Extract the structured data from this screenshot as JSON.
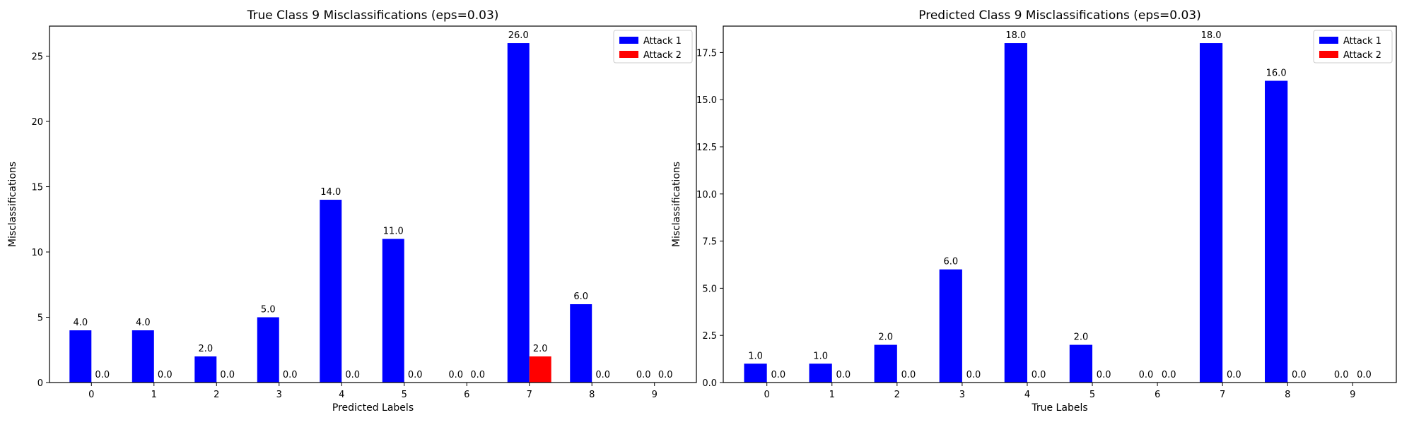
{
  "chart_data": [
    {
      "type": "bar",
      "title": "True Class 9 Misclassifications (eps=0.03)",
      "xlabel": "Predicted Labels",
      "ylabel": "Misclassifications",
      "categories": [
        "0",
        "1",
        "2",
        "3",
        "4",
        "5",
        "6",
        "7",
        "8",
        "9"
      ],
      "ylim": [
        0,
        27.3
      ],
      "yticks": [
        0,
        5,
        10,
        15,
        20,
        25
      ],
      "ytick_labels": [
        "0",
        "5",
        "10",
        "15",
        "20",
        "25"
      ],
      "legend_position": "top-right",
      "series": [
        {
          "name": "Attack 1",
          "color": "#0000ff",
          "values": [
            4,
            4,
            2,
            5,
            14,
            11,
            0,
            26,
            6,
            0
          ],
          "labels": [
            "4.0",
            "4.0",
            "2.0",
            "5.0",
            "14.0",
            "11.0",
            "0.0",
            "26.0",
            "6.0",
            "0.0"
          ]
        },
        {
          "name": "Attack 2",
          "color": "#ff0000",
          "values": [
            0,
            0,
            0,
            0,
            0,
            0,
            0,
            2,
            0,
            0
          ],
          "labels": [
            "0.0",
            "0.0",
            "0.0",
            "0.0",
            "0.0",
            "0.0",
            "0.0",
            "2.0",
            "0.0",
            "0.0"
          ]
        }
      ]
    },
    {
      "type": "bar",
      "title": "Predicted Class 9 Misclassifications (eps=0.03)",
      "xlabel": "True Labels",
      "ylabel": "Misclassifications",
      "categories": [
        "0",
        "1",
        "2",
        "3",
        "4",
        "5",
        "6",
        "7",
        "8",
        "9"
      ],
      "ylim": [
        0,
        18.9
      ],
      "yticks": [
        0,
        2.5,
        5,
        7.5,
        10,
        12.5,
        15,
        17.5
      ],
      "ytick_labels": [
        "0.0",
        "2.5",
        "5.0",
        "7.5",
        "10.0",
        "12.5",
        "15.0",
        "17.5"
      ],
      "legend_position": "top-right",
      "series": [
        {
          "name": "Attack 1",
          "color": "#0000ff",
          "values": [
            1,
            1,
            2,
            6,
            18,
            2,
            0,
            18,
            16,
            0
          ],
          "labels": [
            "1.0",
            "1.0",
            "2.0",
            "6.0",
            "18.0",
            "2.0",
            "0.0",
            "18.0",
            "16.0",
            "0.0"
          ]
        },
        {
          "name": "Attack 2",
          "color": "#ff0000",
          "values": [
            0,
            0,
            0,
            0,
            0,
            0,
            0,
            0,
            0,
            0
          ],
          "labels": [
            "0.0",
            "0.0",
            "0.0",
            "0.0",
            "0.0",
            "0.0",
            "0.0",
            "0.0",
            "0.0",
            "0.0"
          ]
        }
      ]
    }
  ]
}
